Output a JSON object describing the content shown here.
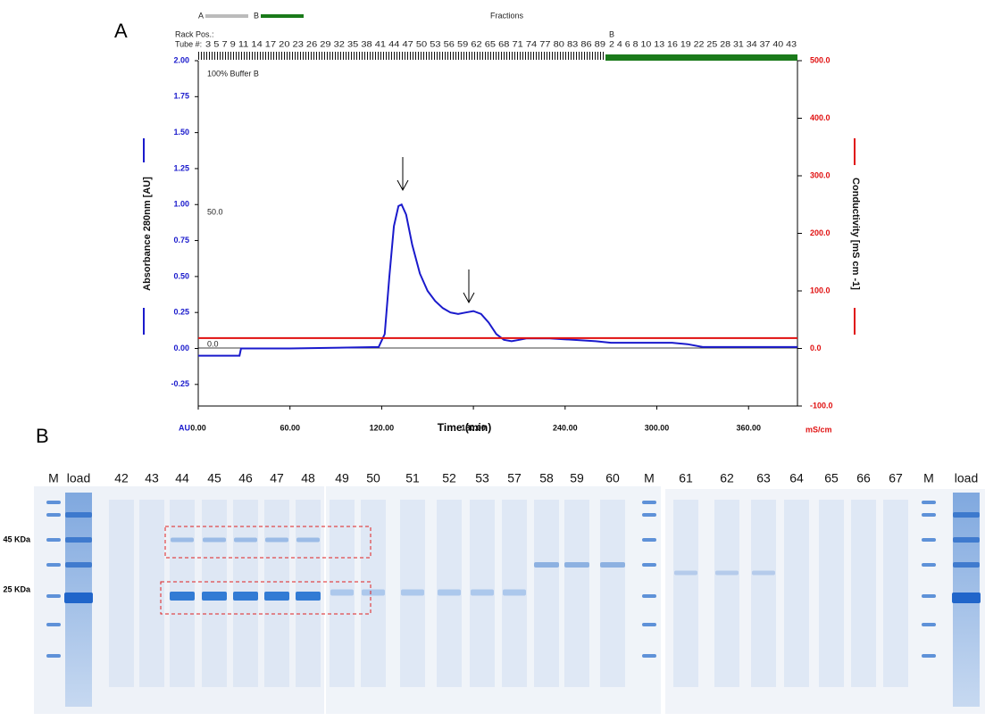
{
  "chart_data": {
    "type": "line",
    "panel_label": "A",
    "xlabel": "Time (min)",
    "ylabel": "Absorbance 280nm [AU]",
    "y2label": "Conductivity [mS cm -1]",
    "y_unit": "AU",
    "y2_unit": "mS/cm",
    "fraction_header": "Fractions",
    "legend_a": "A",
    "legend_b": "B",
    "rack_pos": "Rack Pos.:",
    "tube": "Tube #:",
    "rack_b": "B",
    "fractions": [
      "3 5 7 9 11 14 17 20 23 26 29 32 35 38 41 44 47 50 53 56 59 62 65 68 71 74 77 80 83 86 89",
      "2 4 6 8 10 13 16 19 22 25 28 31 34 37 40 43"
    ],
    "gradient_labels": [
      "100% Buffer B",
      "50.0",
      "0.0"
    ],
    "xlim": [
      0,
      392
    ],
    "ylim": [
      -0.4,
      2.0
    ],
    "y2lim": [
      -100,
      500
    ],
    "xticks": [
      {
        "value": 0,
        "label": "0.00"
      },
      {
        "value": 60,
        "label": "60.00"
      },
      {
        "value": 120,
        "label": "120.00"
      },
      {
        "value": 180,
        "label": "180.00"
      },
      {
        "value": 240,
        "label": "240.00"
      },
      {
        "value": 300,
        "label": "300.00"
      },
      {
        "value": 360,
        "label": "360.00"
      }
    ],
    "yticks": [
      {
        "value": 2,
        "label": "2.00"
      },
      {
        "value": 1.75,
        "label": "1.75"
      },
      {
        "value": 1.5,
        "label": "1.50"
      },
      {
        "value": 1.25,
        "label": "1.25"
      },
      {
        "value": 1,
        "label": "1.00"
      },
      {
        "value": 0.75,
        "label": "0.75"
      },
      {
        "value": 0.5,
        "label": "0.50"
      },
      {
        "value": 0.25,
        "label": "0.25"
      },
      {
        "value": 0,
        "label": "0.00"
      },
      {
        "value": -0.25,
        "label": "-0.25"
      }
    ],
    "y2ticks": [
      {
        "value": 500,
        "label": "500.0"
      },
      {
        "value": 400,
        "label": "400.0"
      },
      {
        "value": 300,
        "label": "300.0"
      },
      {
        "value": 200,
        "label": "200.0"
      },
      {
        "value": 100,
        "label": "100.0"
      },
      {
        "value": 0,
        "label": "0.0"
      },
      {
        "value": -100,
        "label": "-100.0"
      }
    ],
    "series": [
      {
        "color": "#1a1acc",
        "x": [
          0,
          27,
          28,
          60,
          118,
          122,
          125,
          128,
          131,
          133,
          136,
          140,
          145,
          150,
          155,
          160,
          165,
          170,
          175,
          180,
          185,
          190,
          195,
          200,
          205,
          210,
          215,
          230,
          245,
          260,
          270,
          290,
          310,
          320,
          330,
          360,
          392
        ],
        "values": [
          -0.05,
          -0.05,
          0,
          0,
          0.01,
          0.1,
          0.5,
          0.85,
          0.99,
          1.0,
          0.93,
          0.72,
          0.52,
          0.4,
          0.33,
          0.28,
          0.25,
          0.24,
          0.25,
          0.26,
          0.24,
          0.18,
          0.1,
          0.06,
          0.05,
          0.06,
          0.07,
          0.07,
          0.06,
          0.05,
          0.04,
          0.04,
          0.04,
          0.03,
          0.01,
          0.01,
          0.01
        ]
      },
      {
        "color": "#e01010",
        "axis": "y2",
        "x": [
          0,
          392
        ],
        "values": [
          18,
          18
        ]
      }
    ]
  },
  "gel": {
    "panel_label": "B",
    "lanes": [
      "M",
      "load",
      "42",
      "43",
      "44",
      "45",
      "46",
      "47",
      "48",
      "49",
      "50",
      "51",
      "52",
      "53",
      "57",
      "58",
      "59",
      "60",
      "M",
      "61",
      "62",
      "63",
      "64",
      "65",
      "66",
      "67",
      "M",
      "load"
    ],
    "marker_labels": [
      "45 KDa",
      "25 KDa"
    ]
  }
}
